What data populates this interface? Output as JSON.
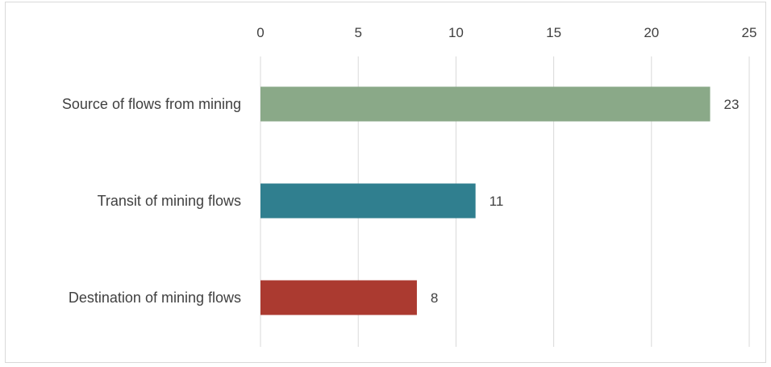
{
  "chart_data": {
    "type": "bar",
    "orientation": "horizontal",
    "categories": [
      "Source of flows from mining",
      "Transit of mining flows",
      "Destination of mining flows"
    ],
    "values": [
      23,
      11,
      8
    ],
    "colors": [
      "#8aa988",
      "#307f8f",
      "#ab3a30"
    ],
    "xlim": [
      0,
      25
    ],
    "xticks": [
      "0",
      "5",
      "10",
      "15",
      "20",
      "25"
    ],
    "axis_position": "top",
    "grid": true,
    "legend": "none",
    "data_labels": [
      "23",
      "11",
      "8"
    ]
  }
}
